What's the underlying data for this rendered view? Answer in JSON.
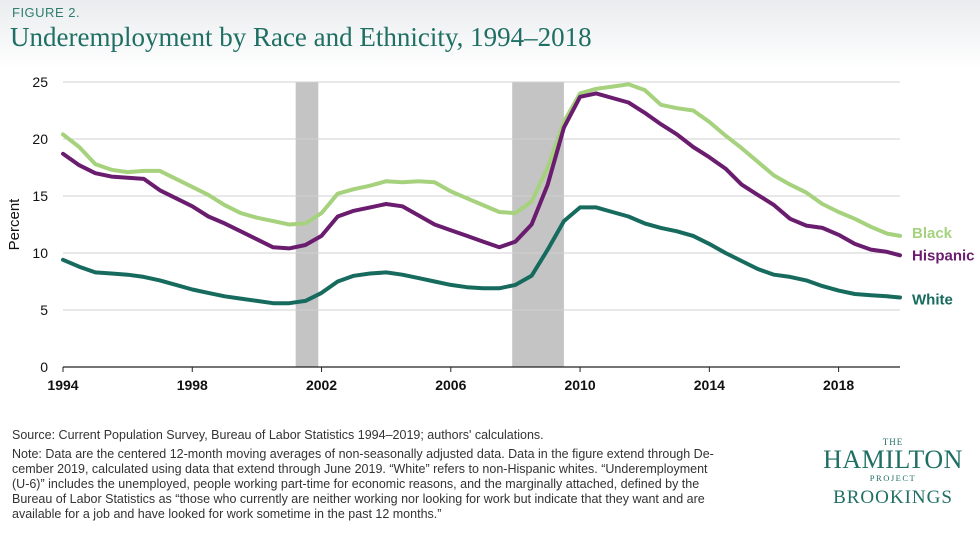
{
  "figure_label": "FIGURE 2.",
  "title": "Underemployment by Race and Ethnicity, 1994–2018",
  "source": "Source: Current Population Survey, Bureau of Labor Statistics 1994–2019; authors' calculations.",
  "note_lines": [
    "Note: Data are the centered 12-month moving averages of non-seasonally adjusted data. Data in the figure extend through De-",
    "cember 2019, calculated using data that extend through June 2019. “White” refers to non-Hispanic whites. “Underemployment",
    "(U-6)” includes the unemployed, people working part-time for economic reasons, and the marginally attached, defined by the",
    "Bureau of Labor Statistics as “those who currently are neither working nor looking for work but indicate that they want and are",
    "available for a job and have looked for work sometime in the past 12 months.”"
  ],
  "logo": {
    "the": "THE",
    "main": "HAMILTON",
    "project": "PROJECT",
    "brookings": "BROOKINGS"
  },
  "chart_data": {
    "type": "line",
    "title": "Underemployment by Race and Ethnicity, 1994–2018",
    "xlabel": "",
    "ylabel": "Percent",
    "xlim": [
      1994,
      2019.9
    ],
    "ylim": [
      0,
      25
    ],
    "xticks": [
      1994,
      1998,
      2002,
      2006,
      2010,
      2014,
      2018
    ],
    "yticks": [
      0,
      5,
      10,
      15,
      20,
      25
    ],
    "recessions": [
      [
        2001.2,
        2001.9
      ],
      [
        2007.9,
        2009.5
      ]
    ],
    "series": [
      {
        "name": "Black",
        "color": "#a6d27e",
        "x": [
          1994,
          1994.5,
          1995,
          1995.5,
          1996,
          1996.5,
          1997,
          1997.5,
          1998,
          1998.5,
          1999,
          1999.5,
          2000,
          2000.5,
          2001,
          2001.5,
          2002,
          2002.5,
          2003,
          2003.5,
          2004,
          2004.5,
          2005,
          2005.5,
          2006,
          2006.5,
          2007,
          2007.5,
          2008,
          2008.5,
          2009,
          2009.5,
          2010,
          2010.5,
          2011,
          2011.5,
          2012,
          2012.5,
          2013,
          2013.5,
          2014,
          2014.5,
          2015,
          2015.5,
          2016,
          2016.5,
          2017,
          2017.5,
          2018,
          2018.5,
          2019,
          2019.5,
          2019.9
        ],
        "values": [
          20.4,
          19.3,
          17.8,
          17.3,
          17.1,
          17.2,
          17.2,
          16.5,
          15.8,
          15.1,
          14.2,
          13.5,
          13.1,
          12.8,
          12.5,
          12.6,
          13.5,
          15.2,
          15.6,
          15.9,
          16.3,
          16.2,
          16.3,
          16.2,
          15.4,
          14.8,
          14.2,
          13.6,
          13.5,
          14.5,
          17.5,
          21.5,
          24.0,
          24.4,
          24.6,
          24.8,
          24.3,
          23.0,
          22.7,
          22.5,
          21.5,
          20.3,
          19.2,
          18.0,
          16.8,
          16.0,
          15.3,
          14.3,
          13.6,
          13.0,
          12.3,
          11.7,
          11.5
        ]
      },
      {
        "name": "Hispanic",
        "color": "#6a1d6f",
        "x": [
          1994,
          1994.5,
          1995,
          1995.5,
          1996,
          1996.5,
          1997,
          1997.5,
          1998,
          1998.5,
          1999,
          1999.5,
          2000,
          2000.5,
          2001,
          2001.5,
          2002,
          2002.5,
          2003,
          2003.5,
          2004,
          2004.5,
          2005,
          2005.5,
          2006,
          2006.5,
          2007,
          2007.5,
          2008,
          2008.5,
          2009,
          2009.5,
          2010,
          2010.5,
          2011,
          2011.5,
          2012,
          2012.5,
          2013,
          2013.5,
          2014,
          2014.5,
          2015,
          2015.5,
          2016,
          2016.5,
          2017,
          2017.5,
          2018,
          2018.5,
          2019,
          2019.5,
          2019.9
        ],
        "values": [
          18.7,
          17.7,
          17.0,
          16.7,
          16.6,
          16.5,
          15.5,
          14.8,
          14.1,
          13.2,
          12.6,
          11.9,
          11.2,
          10.5,
          10.4,
          10.7,
          11.5,
          13.2,
          13.7,
          14.0,
          14.3,
          14.1,
          13.3,
          12.5,
          12.0,
          11.5,
          11.0,
          10.5,
          11.0,
          12.5,
          16.0,
          21.0,
          23.7,
          24.0,
          23.6,
          23.2,
          22.3,
          21.3,
          20.4,
          19.3,
          18.4,
          17.4,
          16.0,
          15.1,
          14.2,
          13.0,
          12.4,
          12.2,
          11.6,
          10.8,
          10.3,
          10.1,
          9.8
        ]
      },
      {
        "name": "White",
        "color": "#176b5e",
        "x": [
          1994,
          1994.5,
          1995,
          1995.5,
          1996,
          1996.5,
          1997,
          1997.5,
          1998,
          1998.5,
          1999,
          1999.5,
          2000,
          2000.5,
          2001,
          2001.5,
          2002,
          2002.5,
          2003,
          2003.5,
          2004,
          2004.5,
          2005,
          2005.5,
          2006,
          2006.5,
          2007,
          2007.5,
          2008,
          2008.5,
          2009,
          2009.5,
          2010,
          2010.5,
          2011,
          2011.5,
          2012,
          2012.5,
          2013,
          2013.5,
          2014,
          2014.5,
          2015,
          2015.5,
          2016,
          2016.5,
          2017,
          2017.5,
          2018,
          2018.5,
          2019,
          2019.5,
          2019.9
        ],
        "values": [
          9.4,
          8.8,
          8.3,
          8.2,
          8.1,
          7.9,
          7.6,
          7.2,
          6.8,
          6.5,
          6.2,
          6.0,
          5.8,
          5.6,
          5.6,
          5.8,
          6.5,
          7.5,
          8.0,
          8.2,
          8.3,
          8.1,
          7.8,
          7.5,
          7.2,
          7.0,
          6.9,
          6.9,
          7.2,
          8.0,
          10.3,
          12.8,
          14.0,
          14.0,
          13.6,
          13.2,
          12.6,
          12.2,
          11.9,
          11.5,
          10.8,
          10.0,
          9.3,
          8.6,
          8.1,
          7.9,
          7.6,
          7.1,
          6.7,
          6.4,
          6.3,
          6.2,
          6.1
        ]
      }
    ]
  }
}
